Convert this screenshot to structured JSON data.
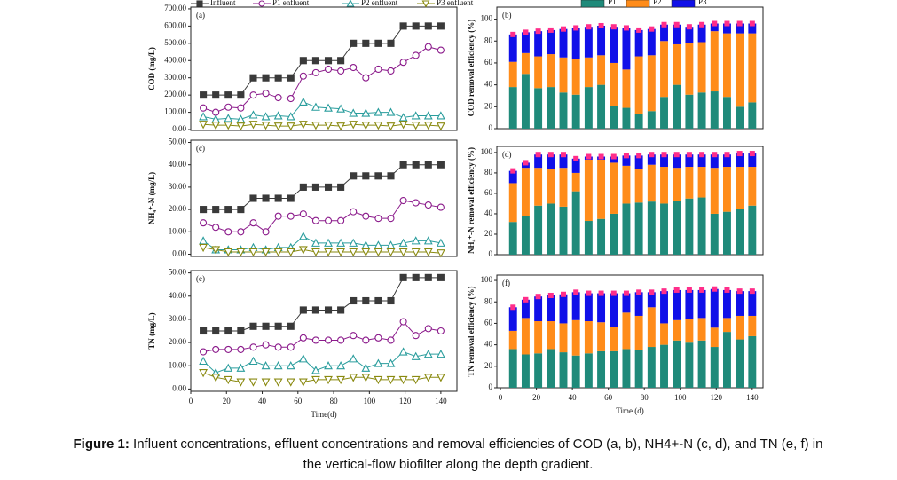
{
  "chart_data": [
    {
      "type": "line",
      "panel_label": "(a)",
      "ylabel": "COD (mg/L)",
      "legend": "top",
      "xlim": [
        0,
        149
      ],
      "ylim": [
        -5,
        710
      ],
      "yticks": [
        {
          "value": 0,
          "label": "0.00"
        },
        {
          "value": 100,
          "label": "100.00"
        },
        {
          "value": 200,
          "label": "200.00"
        },
        {
          "value": 300,
          "label": "300.00"
        },
        {
          "value": 400,
          "label": "400.00"
        },
        {
          "value": 500,
          "label": "500.00"
        },
        {
          "value": 600,
          "label": "600.00"
        },
        {
          "value": 700,
          "label": "700.00"
        }
      ],
      "x": [
        7,
        14,
        21,
        28,
        35,
        42,
        49,
        56,
        63,
        70,
        77,
        84,
        91,
        98,
        105,
        112,
        119,
        126,
        133,
        140
      ],
      "series": [
        {
          "name": "Influent",
          "color": "#3a3a3a",
          "marker": "square",
          "values": [
            200,
            200,
            200,
            200,
            300,
            300,
            300,
            300,
            400,
            400,
            400,
            400,
            500,
            500,
            500,
            500,
            600,
            600,
            600,
            600
          ]
        },
        {
          "name": "P1 enfluent",
          "color": "#8b1a8b",
          "marker": "circle",
          "values": [
            125,
            100,
            130,
            125,
            200,
            210,
            185,
            180,
            310,
            330,
            350,
            340,
            360,
            300,
            350,
            340,
            390,
            430,
            480,
            460
          ]
        },
        {
          "name": "P2 enfluent",
          "color": "#2a9d9d",
          "marker": "triangle",
          "values": [
            75,
            60,
            65,
            60,
            85,
            75,
            80,
            75,
            160,
            130,
            125,
            120,
            95,
            95,
            100,
            100,
            70,
            80,
            80,
            80
          ]
        },
        {
          "name": "P3 enfluent",
          "color": "#8a8a10",
          "marker": "triangle-down",
          "values": [
            30,
            25,
            25,
            20,
            30,
            25,
            20,
            20,
            30,
            25,
            25,
            20,
            30,
            25,
            25,
            20,
            30,
            25,
            25,
            20
          ]
        }
      ]
    },
    {
      "type": "bar",
      "stacked": true,
      "panel_label": "(b)",
      "ylabel": "COD removal efficiency (%)",
      "legend": "top",
      "xlim": [
        -2,
        146
      ],
      "ylim": [
        0,
        111
      ],
      "yticks": [
        0,
        20,
        40,
        60,
        80,
        100
      ],
      "x": [
        7,
        14,
        21,
        28,
        35,
        42,
        49,
        56,
        63,
        70,
        77,
        84,
        91,
        98,
        105,
        112,
        119,
        126,
        133,
        140
      ],
      "cap_color": "#ff2d8a",
      "series": [
        {
          "name": "P1",
          "color": "#1f8a7a",
          "values": [
            38,
            50,
            37,
            38,
            33,
            31,
            38,
            40,
            21,
            19,
            13,
            16,
            29,
            40,
            31,
            33,
            34,
            29,
            20,
            24
          ]
        },
        {
          "name": "P2",
          "color": "#ff8c1a",
          "values": [
            23,
            19,
            29,
            30,
            32,
            33,
            27,
            27,
            39,
            35,
            53,
            51,
            51,
            37,
            47,
            46,
            55,
            58,
            67,
            63
          ]
        },
        {
          "name": "P3",
          "color": "#1010e8",
          "values": [
            25,
            19,
            23,
            22,
            26,
            28,
            28,
            27,
            33,
            38,
            24,
            24,
            15,
            18,
            15,
            16,
            7,
            9,
            9,
            9
          ]
        }
      ]
    },
    {
      "type": "line",
      "panel_label": "(c)",
      "ylabel": "NH₄⁺-N (mg/L)",
      "xlim": [
        0,
        149
      ],
      "ylim": [
        -1,
        51
      ],
      "yticks": [
        {
          "value": 0,
          "label": "0.00"
        },
        {
          "value": 10,
          "label": "10.00"
        },
        {
          "value": 20,
          "label": "20.00"
        },
        {
          "value": 30,
          "label": "30.00"
        },
        {
          "value": 40,
          "label": "40.00"
        },
        {
          "value": 50,
          "label": "50.00"
        }
      ],
      "x": [
        7,
        14,
        21,
        28,
        35,
        42,
        49,
        56,
        63,
        70,
        77,
        84,
        91,
        98,
        105,
        112,
        119,
        126,
        133,
        140
      ],
      "series": [
        {
          "color": "#3a3a3a",
          "marker": "square",
          "values": [
            20,
            20,
            20,
            20,
            25,
            25,
            25,
            25,
            30,
            30,
            30,
            30,
            35,
            35,
            35,
            35,
            40,
            40,
            40,
            40
          ]
        },
        {
          "color": "#8b1a8b",
          "marker": "circle",
          "values": [
            14,
            12,
            10,
            10,
            14,
            10,
            17,
            17,
            18,
            15,
            15,
            15,
            19,
            17,
            16,
            16,
            24,
            23,
            22,
            21
          ]
        },
        {
          "color": "#2a9d9d",
          "marker": "triangle",
          "values": [
            6,
            2,
            2,
            2,
            3,
            2,
            3,
            3,
            8,
            5,
            5,
            5,
            5,
            4,
            4,
            4,
            5,
            6,
            6,
            5
          ]
        },
        {
          "color": "#8a8a10",
          "marker": "triangle-down",
          "values": [
            3,
            2,
            1,
            1,
            1,
            1,
            1,
            1,
            2,
            1,
            1,
            1,
            1,
            1,
            1,
            1,
            1,
            1,
            1,
            0.5
          ]
        }
      ]
    },
    {
      "type": "bar",
      "stacked": true,
      "panel_label": "(d)",
      "ylabel": "NH₄⁺-N removal efficiency (%)",
      "xlim": [
        -2,
        146
      ],
      "ylim": [
        0,
        106
      ],
      "yticks": [
        0,
        20,
        40,
        60,
        80,
        100
      ],
      "x": [
        7,
        14,
        21,
        28,
        35,
        42,
        49,
        56,
        63,
        70,
        77,
        84,
        91,
        98,
        105,
        112,
        119,
        126,
        133,
        140
      ],
      "cap_color": "#ff2d8a",
      "series": [
        {
          "color": "#1f8a7a",
          "values": [
            32,
            38,
            48,
            50,
            47,
            62,
            33,
            35,
            40,
            50,
            51,
            52,
            50,
            53,
            55,
            56,
            40,
            42,
            45,
            48
          ]
        },
        {
          "color": "#ff8c1a",
          "values": [
            38,
            47,
            37,
            34,
            38,
            18,
            60,
            58,
            50,
            37,
            33,
            36,
            36,
            32,
            31,
            30,
            45,
            44,
            41,
            38
          ]
        },
        {
          "color": "#1010e8",
          "values": [
            12,
            5,
            13,
            14,
            13,
            14,
            3,
            3,
            6,
            10,
            13,
            10,
            12,
            13,
            12,
            12,
            13,
            12,
            13,
            13
          ]
        }
      ]
    },
    {
      "type": "line",
      "panel_label": "(e)",
      "ylabel": "TN (mg/L)",
      "xlabel": "Time(d)",
      "xlim": [
        0,
        149
      ],
      "ylim": [
        -1,
        51
      ],
      "xticks": [
        0,
        20,
        40,
        60,
        80,
        100,
        120,
        140
      ],
      "yticks": [
        {
          "value": 0,
          "label": "0.00"
        },
        {
          "value": 10,
          "label": "10.00"
        },
        {
          "value": 20,
          "label": "20.00"
        },
        {
          "value": 30,
          "label": "30.00"
        },
        {
          "value": 40,
          "label": "40.00"
        },
        {
          "value": 50,
          "label": "50.00"
        }
      ],
      "x": [
        7,
        14,
        21,
        28,
        35,
        42,
        49,
        56,
        63,
        70,
        77,
        84,
        91,
        98,
        105,
        112,
        119,
        126,
        133,
        140
      ],
      "series": [
        {
          "color": "#3a3a3a",
          "marker": "square",
          "values": [
            25,
            25,
            25,
            25,
            27,
            27,
            27,
            27,
            34,
            34,
            34,
            34,
            38,
            38,
            38,
            38,
            48,
            48,
            48,
            48
          ]
        },
        {
          "color": "#8b1a8b",
          "marker": "circle",
          "values": [
            16,
            17,
            17,
            17,
            18,
            19,
            18,
            18,
            22,
            21,
            21,
            21,
            23,
            21,
            22,
            21,
            29,
            23,
            26,
            25
          ]
        },
        {
          "color": "#2a9d9d",
          "marker": "triangle",
          "values": [
            12,
            7,
            9,
            9,
            12,
            10,
            10,
            10,
            13,
            8,
            10,
            10,
            13,
            9,
            11,
            11,
            16,
            14,
            15,
            15
          ]
        },
        {
          "color": "#8a8a10",
          "marker": "triangle-down",
          "values": [
            7,
            5,
            4,
            3,
            3,
            3,
            3,
            3,
            3,
            4,
            4,
            4,
            5,
            5,
            4,
            4,
            4,
            4,
            5,
            5
          ]
        }
      ]
    },
    {
      "type": "bar",
      "stacked": true,
      "panel_label": "(f)",
      "ylabel": "TN removal efficiency (%)",
      "xlabel": "Time (d)",
      "xlim": [
        -2,
        146
      ],
      "ylim": [
        0,
        105
      ],
      "yticks": [
        0,
        20,
        40,
        60,
        80,
        100
      ],
      "xticks": [
        0,
        20,
        40,
        60,
        80,
        100,
        120,
        140
      ],
      "x": [
        7,
        14,
        21,
        28,
        35,
        42,
        49,
        56,
        63,
        70,
        77,
        84,
        91,
        98,
        105,
        112,
        119,
        126,
        133,
        140
      ],
      "cap_color": "#ff2d8a",
      "series": [
        {
          "color": "#1f8a7a",
          "values": [
            36,
            31,
            32,
            36,
            33,
            30,
            32,
            34,
            34,
            36,
            35,
            38,
            40,
            44,
            42,
            44,
            38,
            52,
            45,
            48
          ]
        },
        {
          "color": "#ff8c1a",
          "values": [
            17,
            34,
            30,
            26,
            27,
            33,
            30,
            27,
            23,
            34,
            32,
            37,
            20,
            19,
            22,
            21,
            18,
            13,
            22,
            19
          ]
        },
        {
          "color": "#1010e8",
          "values": [
            22,
            17,
            23,
            24,
            27,
            26,
            26,
            27,
            31,
            18,
            22,
            14,
            30,
            28,
            27,
            26,
            36,
            26,
            23,
            23
          ]
        }
      ]
    }
  ],
  "caption": {
    "label": "Figure 1:",
    "lines": [
      "Influent concentrations, effluent concentrations and removal efficiencies of COD (a, b), NH4+-N (c, d), and TN (e, f) in",
      "the vertical-flow biofilter along the depth gradient."
    ]
  }
}
